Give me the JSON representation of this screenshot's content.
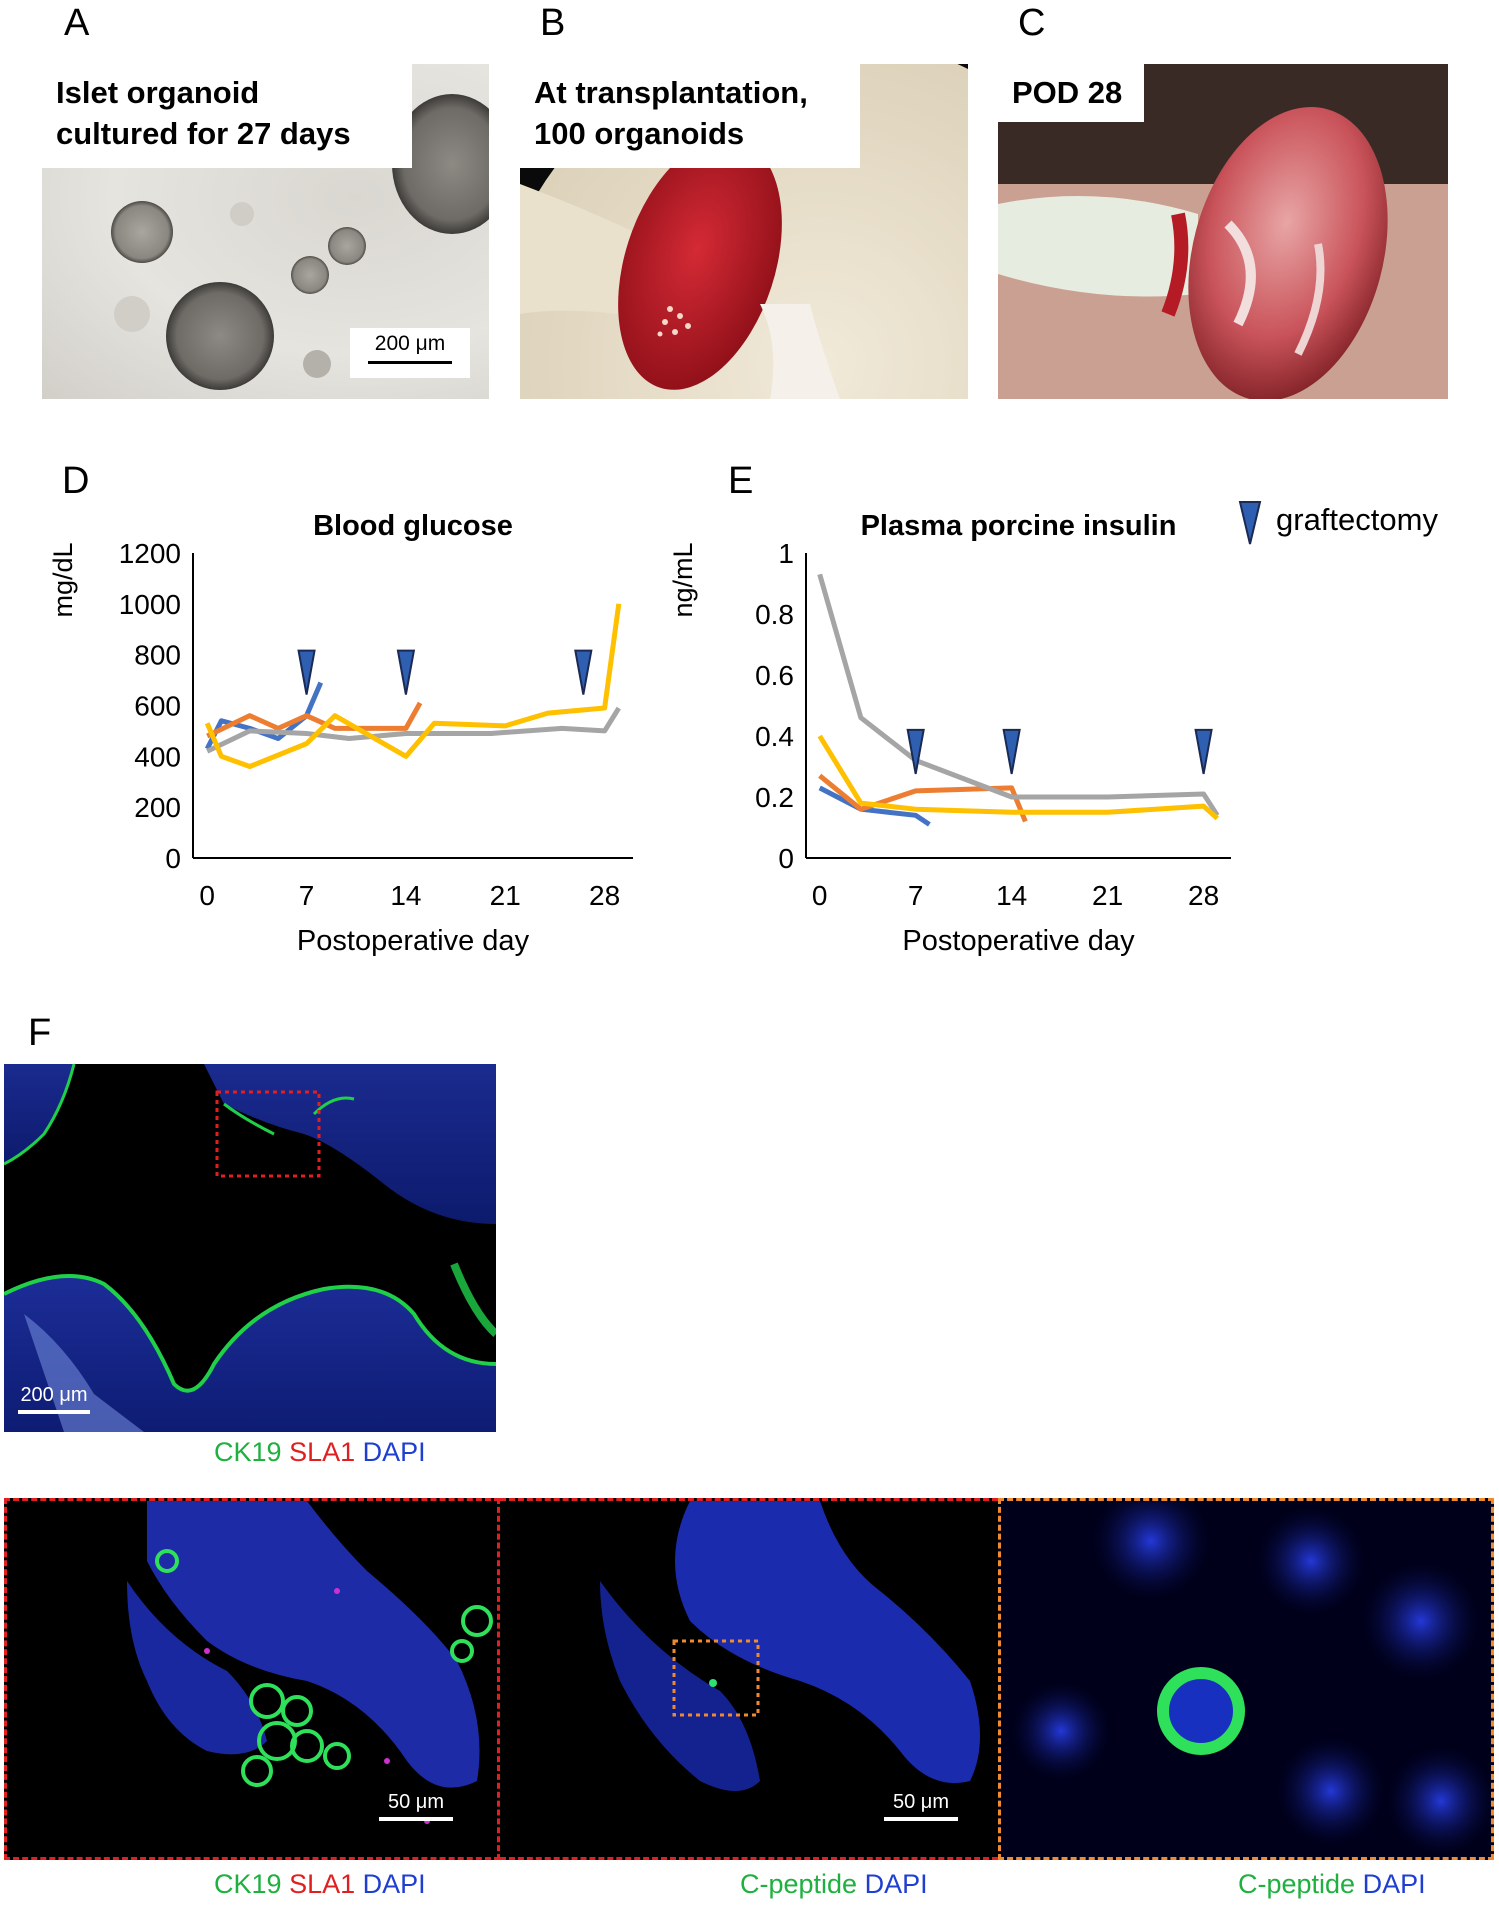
{
  "panels": {
    "A": {
      "letter": "A",
      "caption_line1": "Islet organoid",
      "caption_line2": "cultured for 27 days",
      "scale": "200 μm"
    },
    "B": {
      "letter": "B",
      "caption_line1": "At transplantation,",
      "caption_line2": "100 organoids"
    },
    "C": {
      "letter": "C",
      "caption": "POD 28"
    },
    "D": {
      "letter": "D"
    },
    "E": {
      "letter": "E"
    },
    "F": {
      "letter": "F",
      "overview_scale": "200 μm",
      "zoom1_scale": "50 μm",
      "zoom2_scale": "50 μm"
    }
  },
  "legend": {
    "marker_label": "graftectomy",
    "marker_color": "#2f5fb0"
  },
  "stains": {
    "ck19": "CK19",
    "sla1": "SLA1",
    "dapi": "DAPI",
    "cpeptide": "C-peptide"
  },
  "colors": {
    "blue": "#4472c4",
    "orange": "#ed7d31",
    "gray": "#a5a5a5",
    "yellow": "#ffc000"
  },
  "chart_data": [
    {
      "type": "line",
      "title": "Blood glucose",
      "ylabel": "mg/dL",
      "xlabel": "Postoperative day",
      "xlim": [
        -1,
        30
      ],
      "ylim": [
        0,
        1200
      ],
      "xticks": [
        "0",
        "7",
        "14",
        "21",
        "28"
      ],
      "yticks": [
        "0",
        "200",
        "400",
        "600",
        "800",
        "1000",
        "1200"
      ],
      "graftectomy_days": [
        7,
        14,
        26.5
      ],
      "series": [
        {
          "color": "#4472c4",
          "x": [
            0,
            1,
            3,
            5,
            7,
            8
          ],
          "y": [
            430,
            540,
            510,
            470,
            560,
            690
          ]
        },
        {
          "color": "#ed7d31",
          "x": [
            0,
            3,
            5,
            7,
            9,
            14,
            15
          ],
          "y": [
            480,
            560,
            510,
            560,
            510,
            510,
            610
          ]
        },
        {
          "color": "#a5a5a5",
          "x": [
            0,
            3,
            7,
            10,
            14,
            20,
            25,
            28,
            29
          ],
          "y": [
            420,
            500,
            490,
            470,
            490,
            490,
            510,
            500,
            590
          ]
        },
        {
          "color": "#ffc000",
          "x": [
            0,
            1,
            3,
            7,
            9,
            14,
            16,
            21,
            24,
            28,
            29
          ],
          "y": [
            530,
            400,
            360,
            450,
            560,
            400,
            530,
            520,
            570,
            590,
            1000
          ]
        }
      ]
    },
    {
      "type": "line",
      "title": "Plasma porcine insulin",
      "ylabel": "ng/mL",
      "xlabel": "Postoperative day",
      "xlim": [
        -1,
        30
      ],
      "ylim": [
        0,
        1
      ],
      "xticks": [
        "0",
        "7",
        "14",
        "21",
        "28"
      ],
      "yticks": [
        "0",
        "0.2",
        "0.4",
        "0.6",
        "0.8",
        "1"
      ],
      "graftectomy_days": [
        7,
        14,
        28
      ],
      "series": [
        {
          "color": "#4472c4",
          "x": [
            0,
            3,
            7,
            8
          ],
          "y": [
            0.23,
            0.16,
            0.14,
            0.11
          ]
        },
        {
          "color": "#ed7d31",
          "x": [
            0,
            3,
            7,
            14,
            15
          ],
          "y": [
            0.27,
            0.16,
            0.22,
            0.23,
            0.12
          ]
        },
        {
          "color": "#a5a5a5",
          "x": [
            0,
            3,
            7,
            14,
            21,
            28,
            29
          ],
          "y": [
            0.93,
            0.46,
            0.32,
            0.2,
            0.2,
            0.21,
            0.14
          ]
        },
        {
          "color": "#ffc000",
          "x": [
            0,
            3,
            7,
            14,
            21,
            28,
            29
          ],
          "y": [
            0.4,
            0.18,
            0.16,
            0.15,
            0.15,
            0.17,
            0.13
          ]
        }
      ]
    }
  ]
}
